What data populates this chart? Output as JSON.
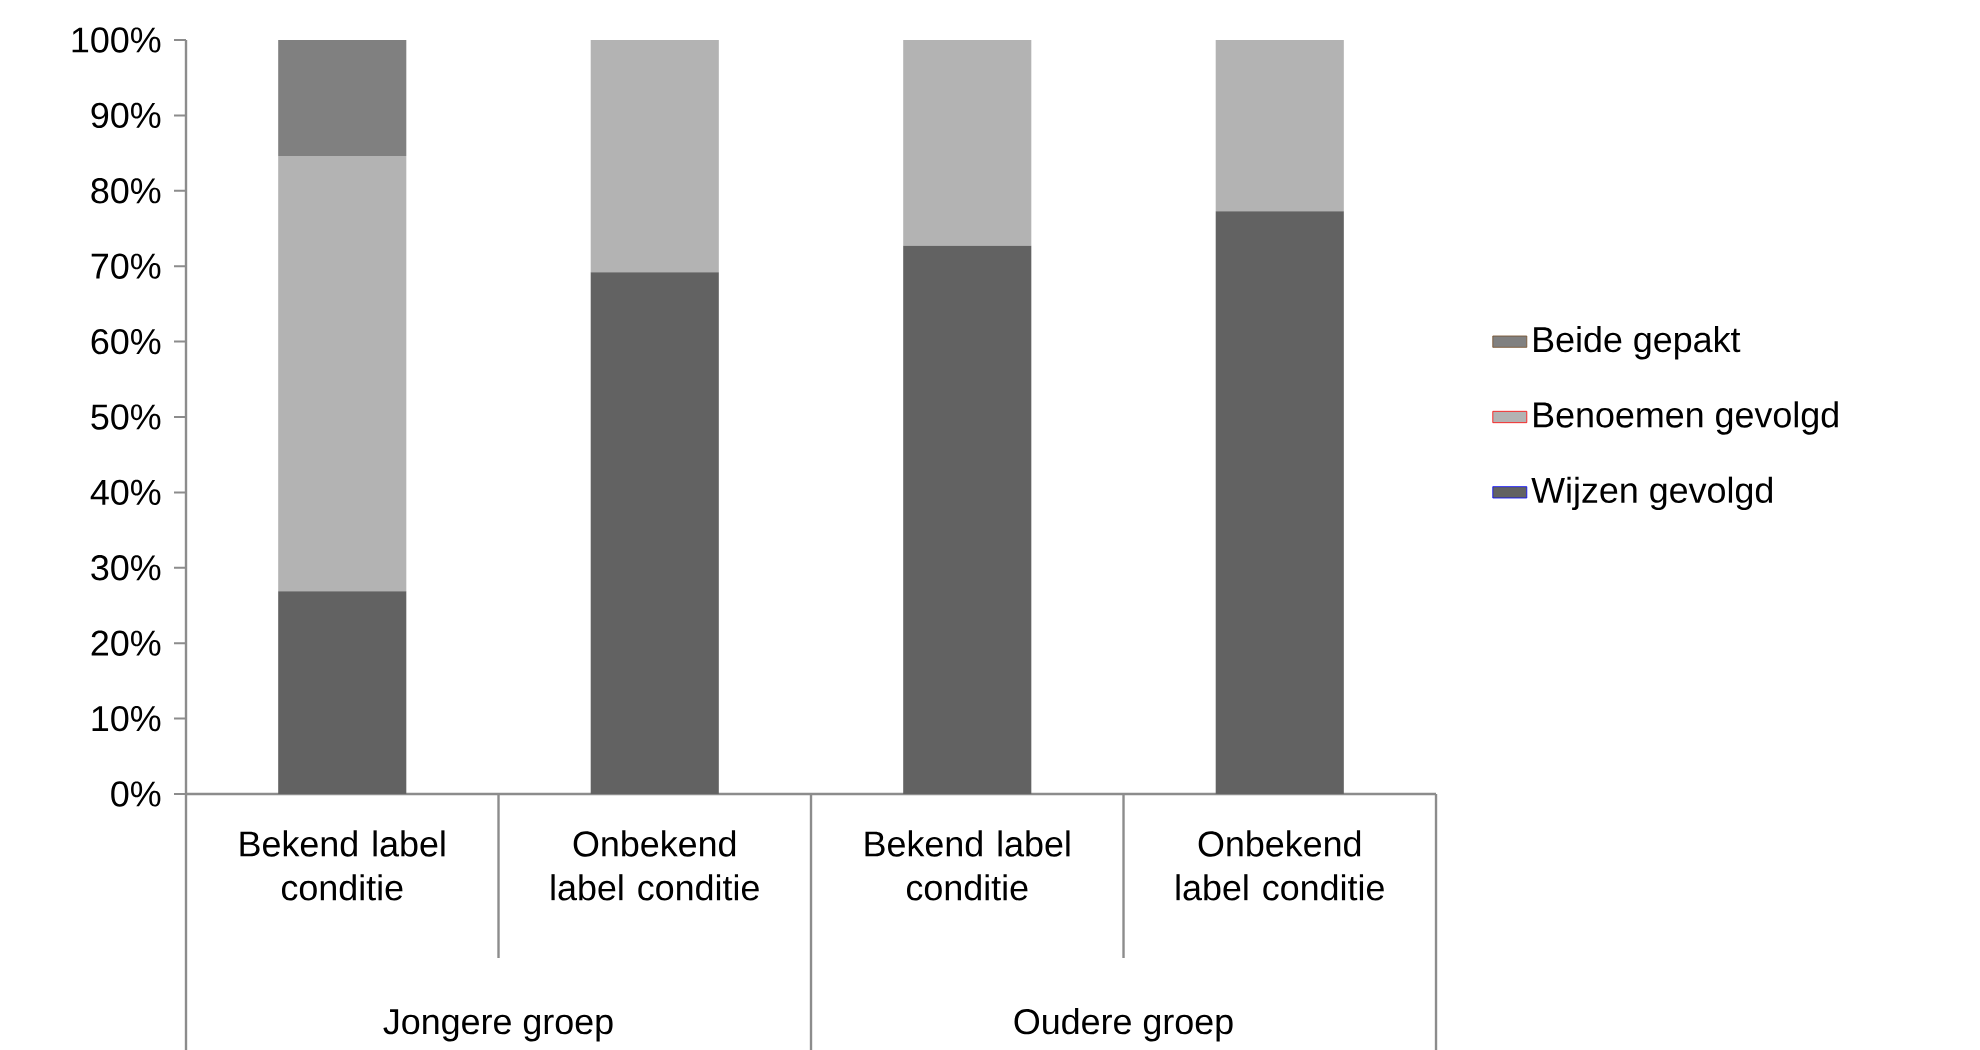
{
  "chart_data": {
    "type": "bar",
    "stacked": true,
    "categories": [
      "Bekend label conditie",
      "Onbekend label conditie",
      "Bekend label conditie",
      "Onbekend label conditie"
    ],
    "annotations": [
      "Jongere groep",
      "Oudere groep"
    ],
    "series": [
      {
        "name": "Wijzen gevolgd",
        "color": "#626262",
        "values": [
          26.9,
          69.2,
          72.7,
          77.3
        ]
      },
      {
        "name": "Benoemen gevolgd",
        "color": "#b3b3b3",
        "values": [
          57.7,
          30.8,
          27.3,
          22.7
        ]
      },
      {
        "name": "Beide gepakt",
        "color": "#808080",
        "values": [
          15.4,
          0,
          0,
          0
        ]
      }
    ],
    "ylim": [
      0,
      100
    ],
    "yticks": [
      {
        "value": 0,
        "label": "0%"
      },
      {
        "value": 10,
        "label": "10%"
      },
      {
        "value": 20,
        "label": "20%"
      },
      {
        "value": 30,
        "label": "30%"
      },
      {
        "value": 40,
        "label": "40%"
      },
      {
        "value": 50,
        "label": "50%"
      },
      {
        "value": 60,
        "label": "60%"
      },
      {
        "value": 70,
        "label": "70%"
      },
      {
        "value": 80,
        "label": "80%"
      },
      {
        "value": 90,
        "label": "90%"
      },
      {
        "value": 100,
        "label": "100%"
      }
    ],
    "legend": "right"
  }
}
